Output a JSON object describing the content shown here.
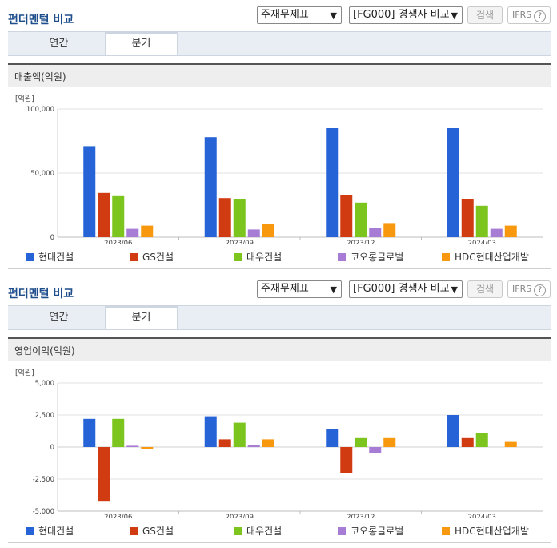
{
  "sections": [
    {
      "title": "펀더멘털 비교",
      "select_statement": "주재무제표",
      "select_compare": "[FG000] 경쟁사 비교",
      "search_label": "검색",
      "ifrs_label": "IFRS",
      "help_glyph": "?",
      "tabs": [
        {
          "label": "연간"
        },
        {
          "label": "분기"
        }
      ],
      "active_tab": "분기",
      "metric_label": "매출액(억원)",
      "unit_label": "[억원]"
    },
    {
      "title": "펀더멘털 비교",
      "select_statement": "주재무제표",
      "select_compare": "[FG000] 경쟁사 비교",
      "search_label": "검색",
      "ifrs_label": "IFRS",
      "help_glyph": "?",
      "tabs": [
        {
          "label": "연간"
        },
        {
          "label": "분기"
        }
      ],
      "active_tab": "분기",
      "metric_label": "영업이익(억원)",
      "unit_label": "[억원]"
    }
  ],
  "colors": {
    "현대건설": "#2563d6",
    "GS건설": "#d13b12",
    "대우건설": "#7cc51f",
    "코오롱글로벌": "#a67cd4",
    "HDC현대산업개발": "#f7980f"
  },
  "chart_data": [
    {
      "type": "bar",
      "title": "매출액(억원)",
      "ylabel": "[억원]",
      "categories": [
        "2023/06",
        "2023/09",
        "2023/12",
        "2024/03"
      ],
      "ylim": [
        0,
        100000
      ],
      "yticks": [
        0,
        50000,
        100000
      ],
      "ytick_labels": [
        "0",
        "50,000",
        "100,000"
      ],
      "grid": true,
      "legend": "bottom",
      "series": [
        {
          "name": "현대건설",
          "values": [
            71000,
            78000,
            85000,
            85000
          ]
        },
        {
          "name": "GS건설",
          "values": [
            34500,
            30500,
            32500,
            30000
          ]
        },
        {
          "name": "대우건설",
          "values": [
            32000,
            29500,
            27000,
            24500
          ]
        },
        {
          "name": "코오롱글로벌",
          "values": [
            6500,
            6000,
            7000,
            6500
          ]
        },
        {
          "name": "HDC현대산업개발",
          "values": [
            9000,
            10000,
            11000,
            9000
          ]
        }
      ]
    },
    {
      "type": "bar",
      "title": "영업이익(억원)",
      "ylabel": "[억원]",
      "categories": [
        "2023/06",
        "2023/09",
        "2023/12",
        "2024/03"
      ],
      "ylim": [
        -5000,
        5000
      ],
      "yticks": [
        -5000,
        -2500,
        0,
        2500,
        5000
      ],
      "ytick_labels": [
        "-5,000",
        "-2,500",
        "0",
        "2,500",
        "5,000"
      ],
      "grid": true,
      "legend": "bottom",
      "series": [
        {
          "name": "현대건설",
          "values": [
            2200,
            2400,
            1400,
            2500
          ]
        },
        {
          "name": "GS건설",
          "values": [
            -4200,
            600,
            -2000,
            700
          ]
        },
        {
          "name": "대우건설",
          "values": [
            2200,
            1900,
            700,
            1100
          ]
        },
        {
          "name": "코오롱글로벌",
          "values": [
            100,
            150,
            -450,
            0
          ]
        },
        {
          "name": "HDC현대산업개발",
          "values": [
            -150,
            600,
            700,
            400
          ]
        }
      ]
    }
  ]
}
